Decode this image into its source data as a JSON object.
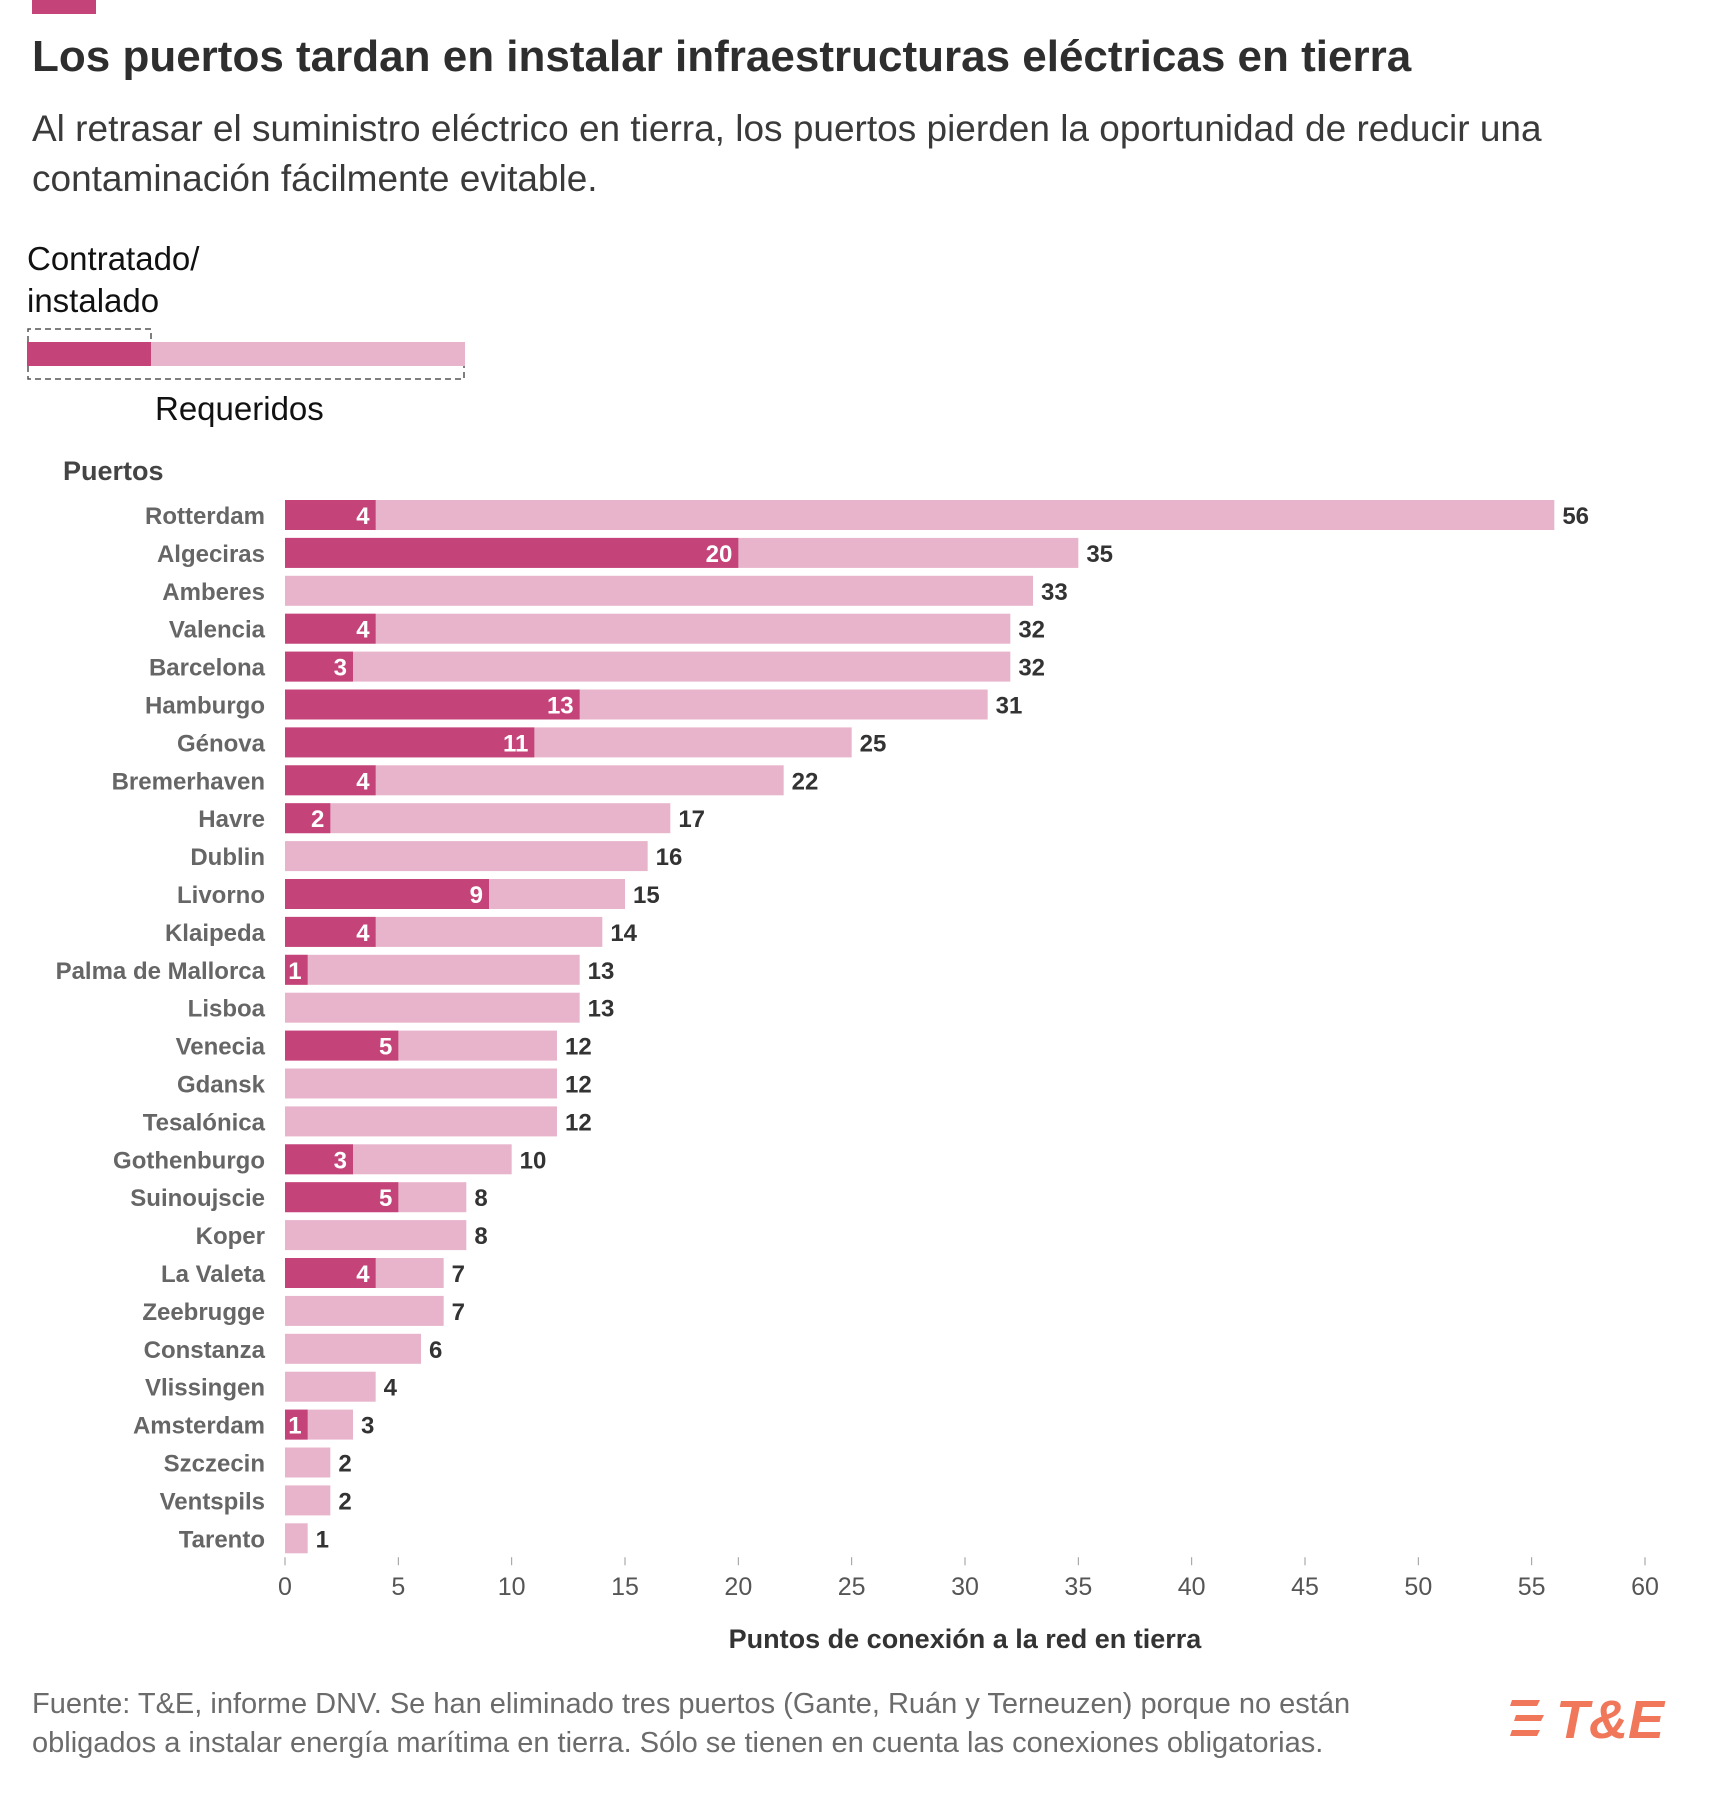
{
  "header": {
    "title": "Los puertos tardan en instalar infraestructuras eléctricas en tierra",
    "subtitle": "Al retrasar el suministro eléctrico en tierra, los puertos pierden la oportunidad de reducir una contaminación fácilmente evitable."
  },
  "legend": {
    "installed_label_line1": "Contratado/",
    "installed_label_line2": "instalado",
    "required_label": "Requeridos"
  },
  "axis": {
    "group_label": "Puertos",
    "x_title": "Puntos de conexión a la red en tierra"
  },
  "footer": {
    "source": "Fuente: T&E, informe DNV. Se han eliminado tres puertos (Gante, Ruán y Terneuzen) porque no están obligados a instalar energía marítima en tierra. Sólo se tienen en cuenta las conexiones obligatorias."
  },
  "logo": {
    "text": "T&E",
    "icon": "te-stripes-icon"
  },
  "colors": {
    "installed": "#c4447a",
    "required": "#e8b4cb",
    "accent": "#c4447a",
    "logo": "#f0775a"
  },
  "chart_data": {
    "type": "bar",
    "orientation": "horizontal",
    "categories": [
      "Rotterdam",
      "Algeciras",
      "Amberes",
      "Valencia",
      "Barcelona",
      "Hamburgo",
      "Génova",
      "Bremerhaven",
      "Havre",
      "Dublin",
      "Livorno",
      "Klaipeda",
      "Palma de Mallorca",
      "Lisboa",
      "Venecia",
      "Gdansk",
      "Tesalónica",
      "Gothenburgo",
      "Suinoujscie",
      "Koper",
      "La Valeta",
      "Zeebrugge",
      "Constanza",
      "Vlissingen",
      "Amsterdam",
      "Szczecin",
      "Ventspils",
      "Tarento"
    ],
    "series": [
      {
        "name": "Requeridos",
        "values": [
          56,
          35,
          33,
          32,
          32,
          31,
          25,
          22,
          17,
          16,
          15,
          14,
          13,
          13,
          12,
          12,
          12,
          10,
          8,
          8,
          7,
          7,
          6,
          4,
          3,
          2,
          2,
          1
        ]
      },
      {
        "name": "Contratado/instalado",
        "values": [
          4,
          20,
          0,
          4,
          3,
          13,
          11,
          4,
          2,
          0,
          9,
          4,
          1,
          0,
          5,
          0,
          0,
          3,
          5,
          0,
          4,
          0,
          0,
          0,
          1,
          0,
          0,
          0
        ]
      }
    ],
    "xlim": [
      0,
      60
    ],
    "xticks": [
      0,
      5,
      10,
      15,
      20,
      25,
      30,
      35,
      40,
      45,
      50,
      55,
      60
    ],
    "xlabel": "Puntos de conexión a la red en tierra",
    "ylabel": "Puertos"
  }
}
